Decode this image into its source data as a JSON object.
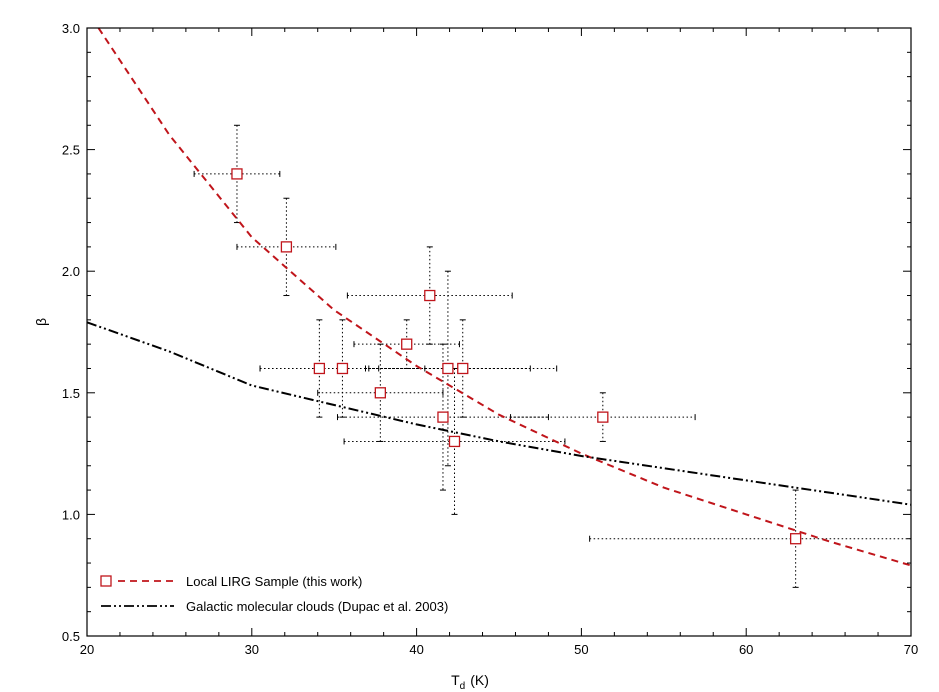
{
  "chart_data": {
    "type": "scatter",
    "xlabel": "T",
    "xlabel_sub": "d",
    "xlabel_unit": "(K)",
    "ylabel": "β",
    "xlim": [
      20,
      70
    ],
    "ylim": [
      0.5,
      3.0
    ],
    "x_ticks": [
      20,
      30,
      40,
      50,
      60,
      70
    ],
    "x_tick_labels": [
      "20",
      "30",
      "40",
      "50",
      "60",
      "70"
    ],
    "y_ticks": [
      0.5,
      1.0,
      1.5,
      2.0,
      2.5,
      3.0
    ],
    "y_tick_labels": [
      "0.5",
      "1.0",
      "1.5",
      "2.0",
      "2.5",
      "3.0"
    ],
    "x_minor_step": 2,
    "y_minor_step": 0.1,
    "grid": false,
    "legend_position": "bottom-left",
    "series": [
      {
        "name": "Local LIRG Sample (this work)",
        "kind": "points",
        "marker": "open-square",
        "color": "#c0151b",
        "points": [
          {
            "x": 29.1,
            "y": 2.4,
            "xerr": 2.6,
            "yerr": 0.2
          },
          {
            "x": 32.1,
            "y": 2.1,
            "xerr": 3.0,
            "yerr": 0.2
          },
          {
            "x": 34.1,
            "y": 1.6,
            "xerr": 3.6,
            "yerr": 0.2
          },
          {
            "x": 35.5,
            "y": 1.6,
            "xerr": 5.0,
            "yerr": 0.2
          },
          {
            "x": 37.8,
            "y": 1.5,
            "xerr": 3.8,
            "yerr": 0.2
          },
          {
            "x": 39.4,
            "y": 1.7,
            "xerr": 3.2,
            "yerr": 0.1
          },
          {
            "x": 40.8,
            "y": 1.9,
            "xerr": 5.0,
            "yerr": 0.2
          },
          {
            "x": 41.6,
            "y": 1.4,
            "xerr": 6.4,
            "yerr": 0.3
          },
          {
            "x": 41.9,
            "y": 1.6,
            "xerr": 5.0,
            "yerr": 0.4
          },
          {
            "x": 42.3,
            "y": 1.3,
            "xerr": 6.7,
            "yerr": 0.3
          },
          {
            "x": 42.8,
            "y": 1.6,
            "xerr": 5.7,
            "yerr": 0.2
          },
          {
            "x": 51.3,
            "y": 1.4,
            "xerr": 5.6,
            "yerr": 0.1
          },
          {
            "x": 63.0,
            "y": 0.9,
            "xerr": 12.5,
            "yerr": 0.2
          }
        ]
      },
      {
        "name": "Local LIRG Sample (this work)",
        "kind": "curve",
        "style": "dashed",
        "color": "#c0151b",
        "x": [
          20.7,
          25,
          30,
          35,
          40,
          45,
          50,
          55,
          60,
          65,
          70
        ],
        "y": [
          3.0,
          2.56,
          2.14,
          1.84,
          1.61,
          1.41,
          1.25,
          1.11,
          1.0,
          0.89,
          0.79
        ]
      },
      {
        "name": "Galactic molecular clouds (Dupac et al. 2003)",
        "kind": "curve",
        "style": "dash-dot-dot",
        "color": "#000000",
        "x": [
          20,
          25,
          30,
          35,
          40,
          45,
          50,
          55,
          60,
          65,
          70
        ],
        "y": [
          1.79,
          1.67,
          1.53,
          1.45,
          1.37,
          1.3,
          1.24,
          1.19,
          1.14,
          1.09,
          1.04
        ]
      }
    ]
  },
  "legend": {
    "items": [
      {
        "label": "Local LIRG Sample (this work)",
        "color": "#c0151b",
        "style": "dashed",
        "marker": "open-square"
      },
      {
        "label": "Galactic molecular clouds (Dupac et al. 2003)",
        "color": "#000000",
        "style": "dash-dot-dot",
        "marker": ""
      }
    ]
  }
}
